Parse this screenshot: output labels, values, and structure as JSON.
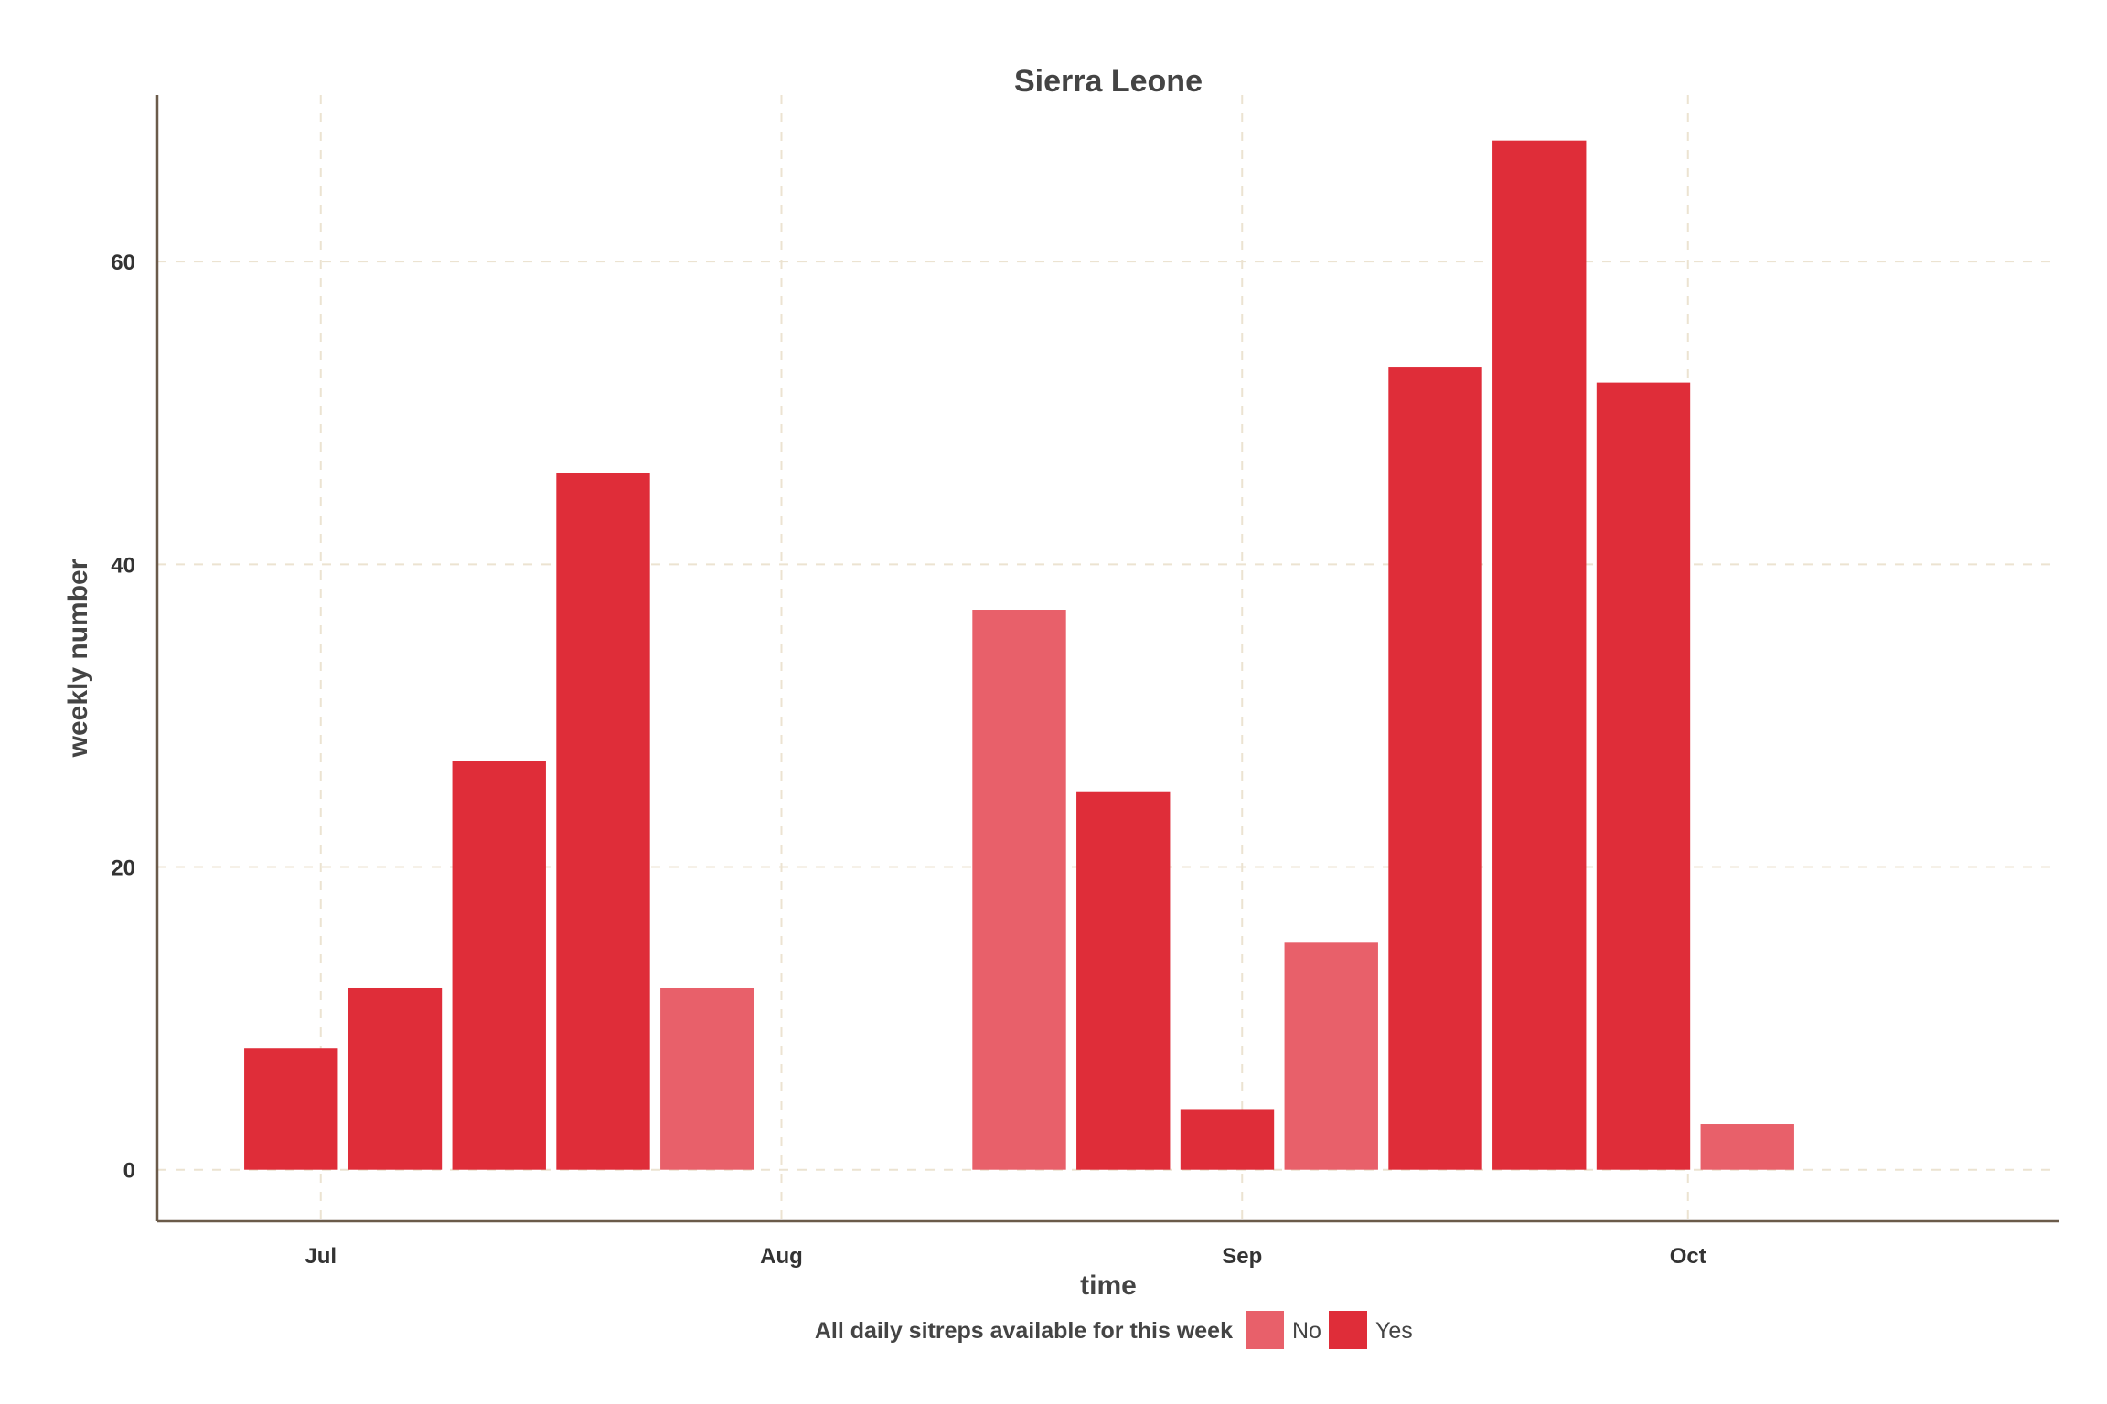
{
  "colors": {
    "no": "#e8606a",
    "yes": "#df2d39",
    "grid": "#ece3d1",
    "axis": "#6b5b4a",
    "text": "#444444"
  },
  "chart_data": {
    "type": "bar",
    "title": "Sierra Leone",
    "xlabel": "time",
    "ylabel": "weekly number",
    "ylim": [
      -3.4,
      71
    ],
    "y_ticks": [
      0,
      20,
      40,
      60
    ],
    "x_range": [
      "2014-06-20",
      "2014-10-26"
    ],
    "x_ticks": [
      {
        "label": "Jul",
        "date": "2014-07-01"
      },
      {
        "label": "Aug",
        "date": "2014-08-01"
      },
      {
        "label": "Sep",
        "date": "2014-09-01"
      },
      {
        "label": "Oct",
        "date": "2014-10-01"
      }
    ],
    "grid": true,
    "legend": {
      "title": "All daily sitreps available for this week",
      "placement": "bottom",
      "entries": [
        {
          "key": "No",
          "label": "No"
        },
        {
          "key": "Yes",
          "label": "Yes"
        }
      ]
    },
    "bars": [
      {
        "date": "2014-06-29",
        "value": 8,
        "group": "Yes"
      },
      {
        "date": "2014-07-06",
        "value": 12,
        "group": "Yes"
      },
      {
        "date": "2014-07-13",
        "value": 27,
        "group": "Yes"
      },
      {
        "date": "2014-07-20",
        "value": 46,
        "group": "Yes"
      },
      {
        "date": "2014-07-27",
        "value": 12,
        "group": "No"
      },
      {
        "date": "2014-08-17",
        "value": 37,
        "group": "No"
      },
      {
        "date": "2014-08-24",
        "value": 25,
        "group": "Yes"
      },
      {
        "date": "2014-08-31",
        "value": 4,
        "group": "Yes"
      },
      {
        "date": "2014-09-07",
        "value": 15,
        "group": "No"
      },
      {
        "date": "2014-09-14",
        "value": 53,
        "group": "Yes"
      },
      {
        "date": "2014-09-21",
        "value": 68,
        "group": "Yes"
      },
      {
        "date": "2014-09-28",
        "value": 52,
        "group": "Yes"
      },
      {
        "date": "2014-10-05",
        "value": 3,
        "group": "No"
      }
    ]
  }
}
